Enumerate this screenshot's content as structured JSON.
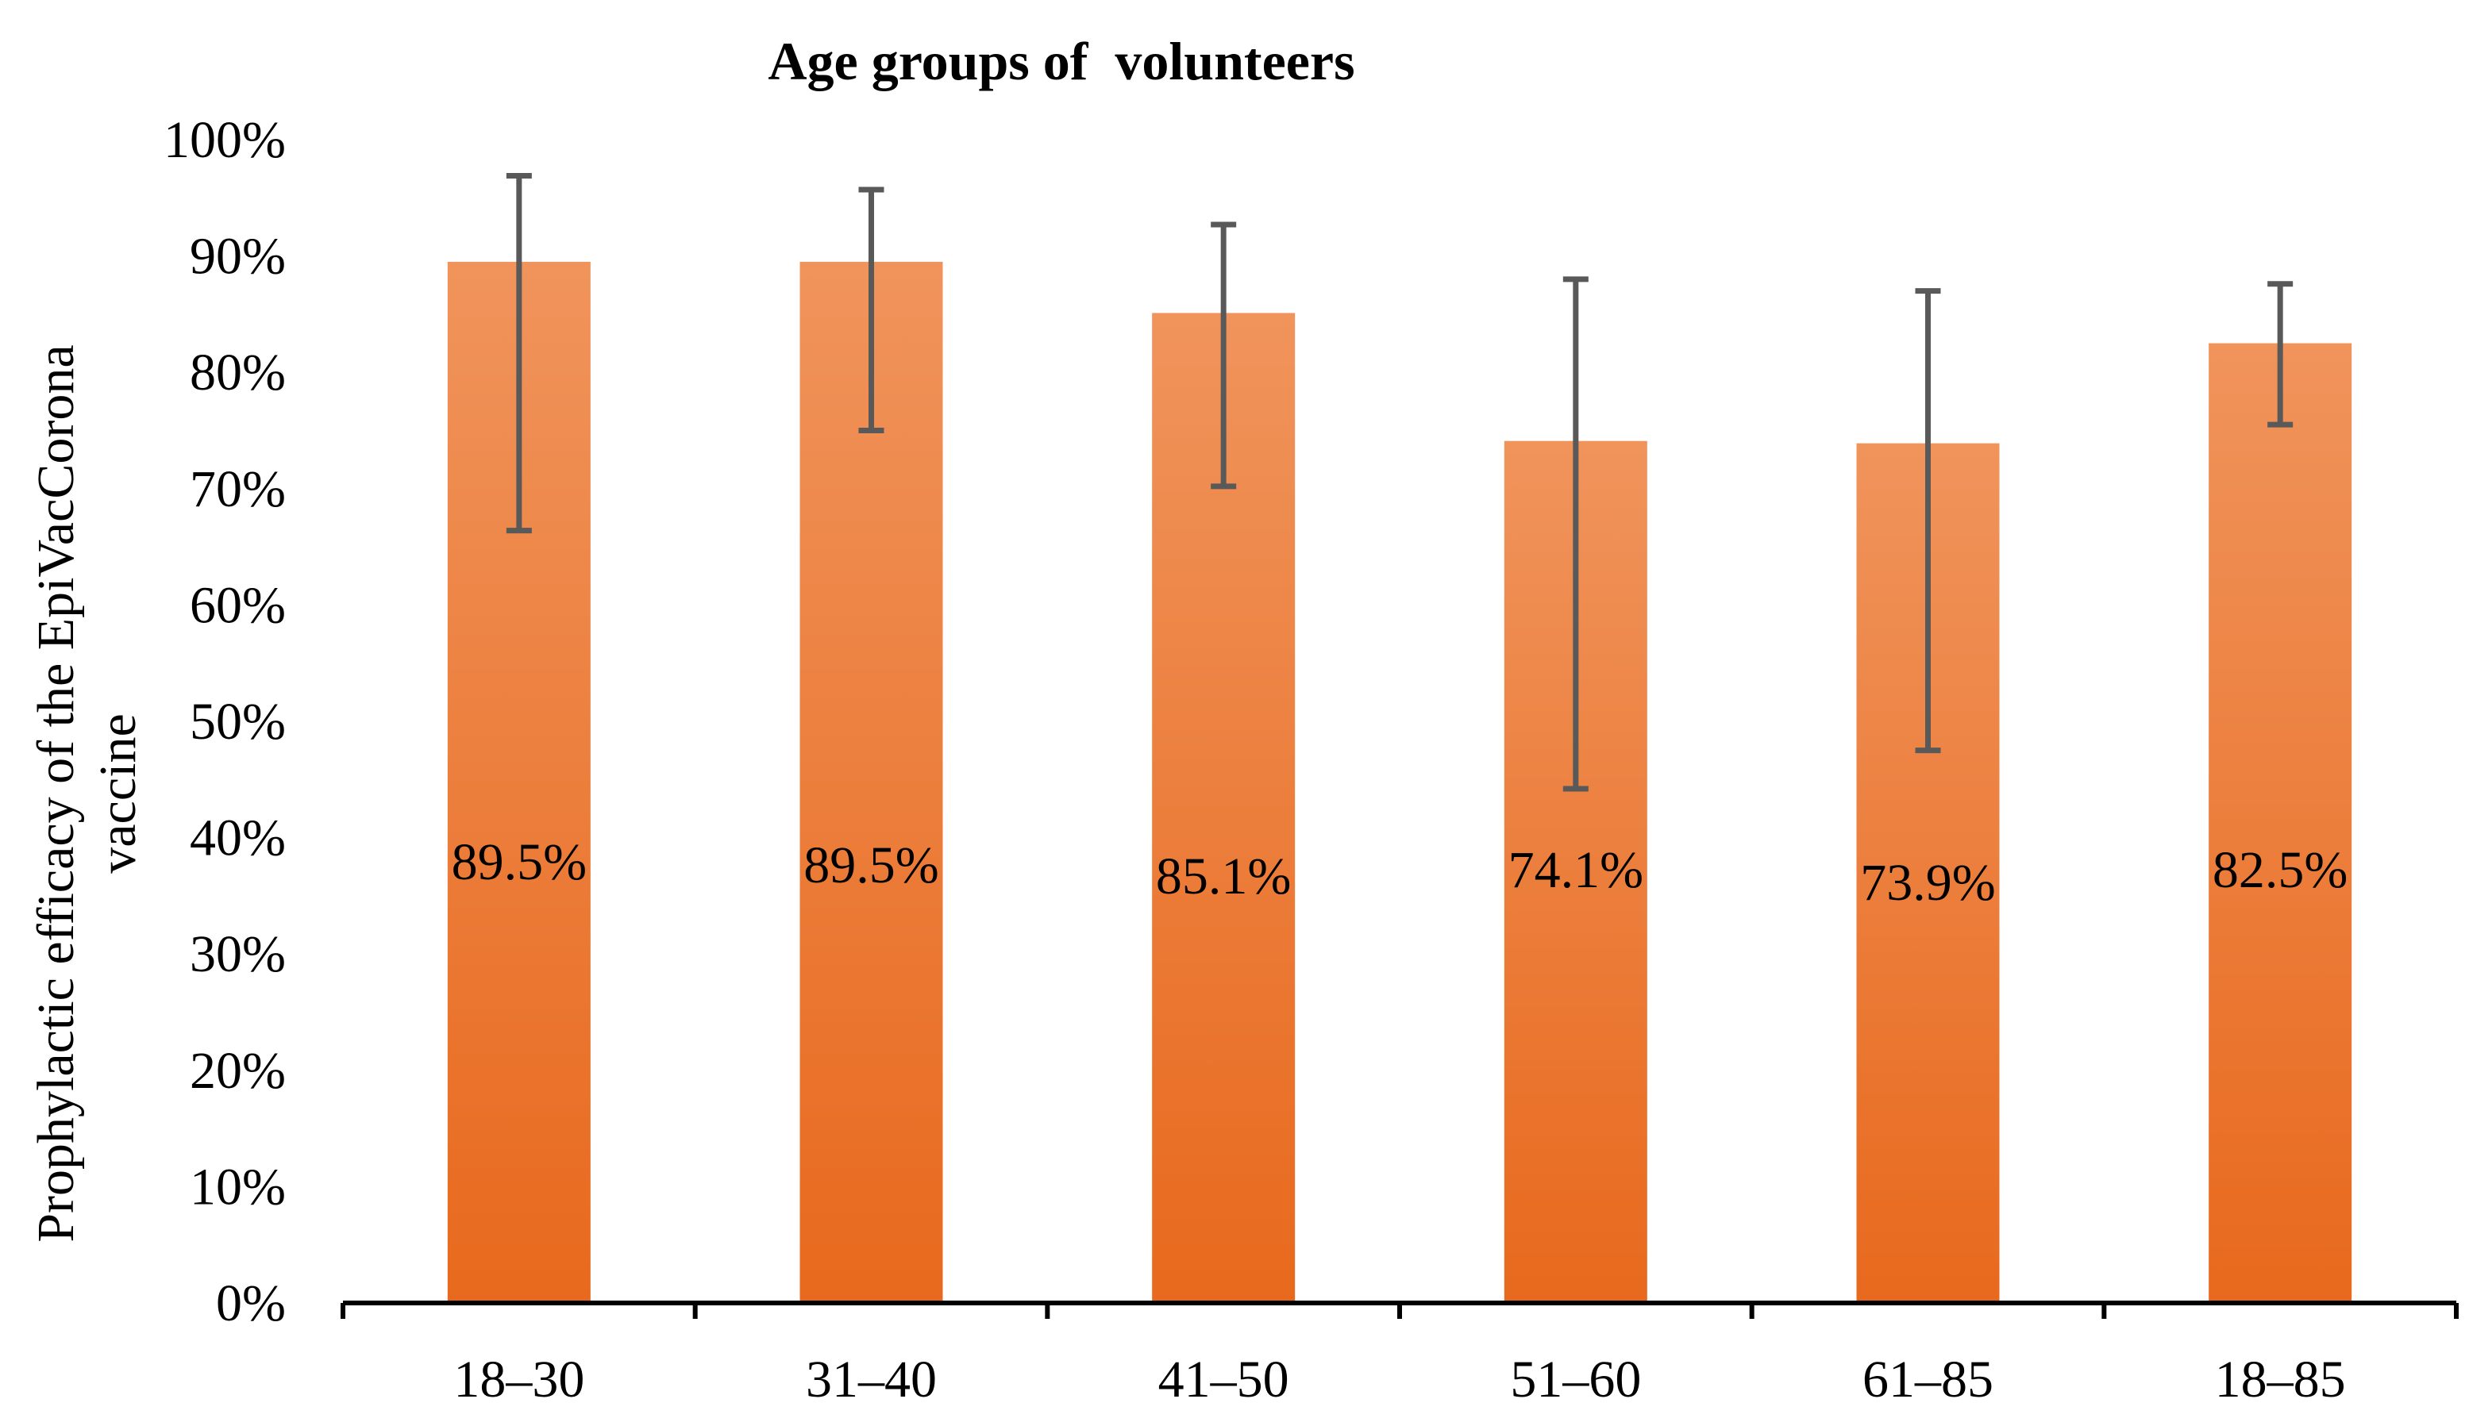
{
  "chart_data": {
    "type": "bar",
    "title": "Age groups of  volunteers",
    "xlabel": "",
    "ylabel_lines": [
      "Prophylactic efficacy of the EpiVacCorona",
      "vaccine"
    ],
    "categories": [
      "18–30",
      "31–40",
      "41–50",
      "51–60",
      "61–85",
      "18–85"
    ],
    "values": [
      89.5,
      89.5,
      85.1,
      74.1,
      73.9,
      82.5
    ],
    "data_labels": [
      "89.5%",
      "89.5%",
      "85.1%",
      "74.1%",
      "73.9%",
      "82.5%"
    ],
    "error_low": [
      66.4,
      75.0,
      70.2,
      44.2,
      47.5,
      75.5
    ],
    "error_high": [
      96.9,
      95.7,
      92.7,
      88.0,
      87.0,
      87.6
    ],
    "ylim": [
      0,
      100
    ],
    "yticks": [
      0,
      10,
      20,
      30,
      40,
      50,
      60,
      70,
      80,
      90,
      100
    ],
    "ytick_labels": [
      "0%",
      "10%",
      "20%",
      "30%",
      "40%",
      "50%",
      "60%",
      "70%",
      "80%",
      "90%",
      "100%"
    ],
    "bar_color_top": "#f0945c",
    "bar_color_bottom": "#e8691d",
    "error_color": "#595959",
    "grid": false,
    "legend": "none"
  }
}
